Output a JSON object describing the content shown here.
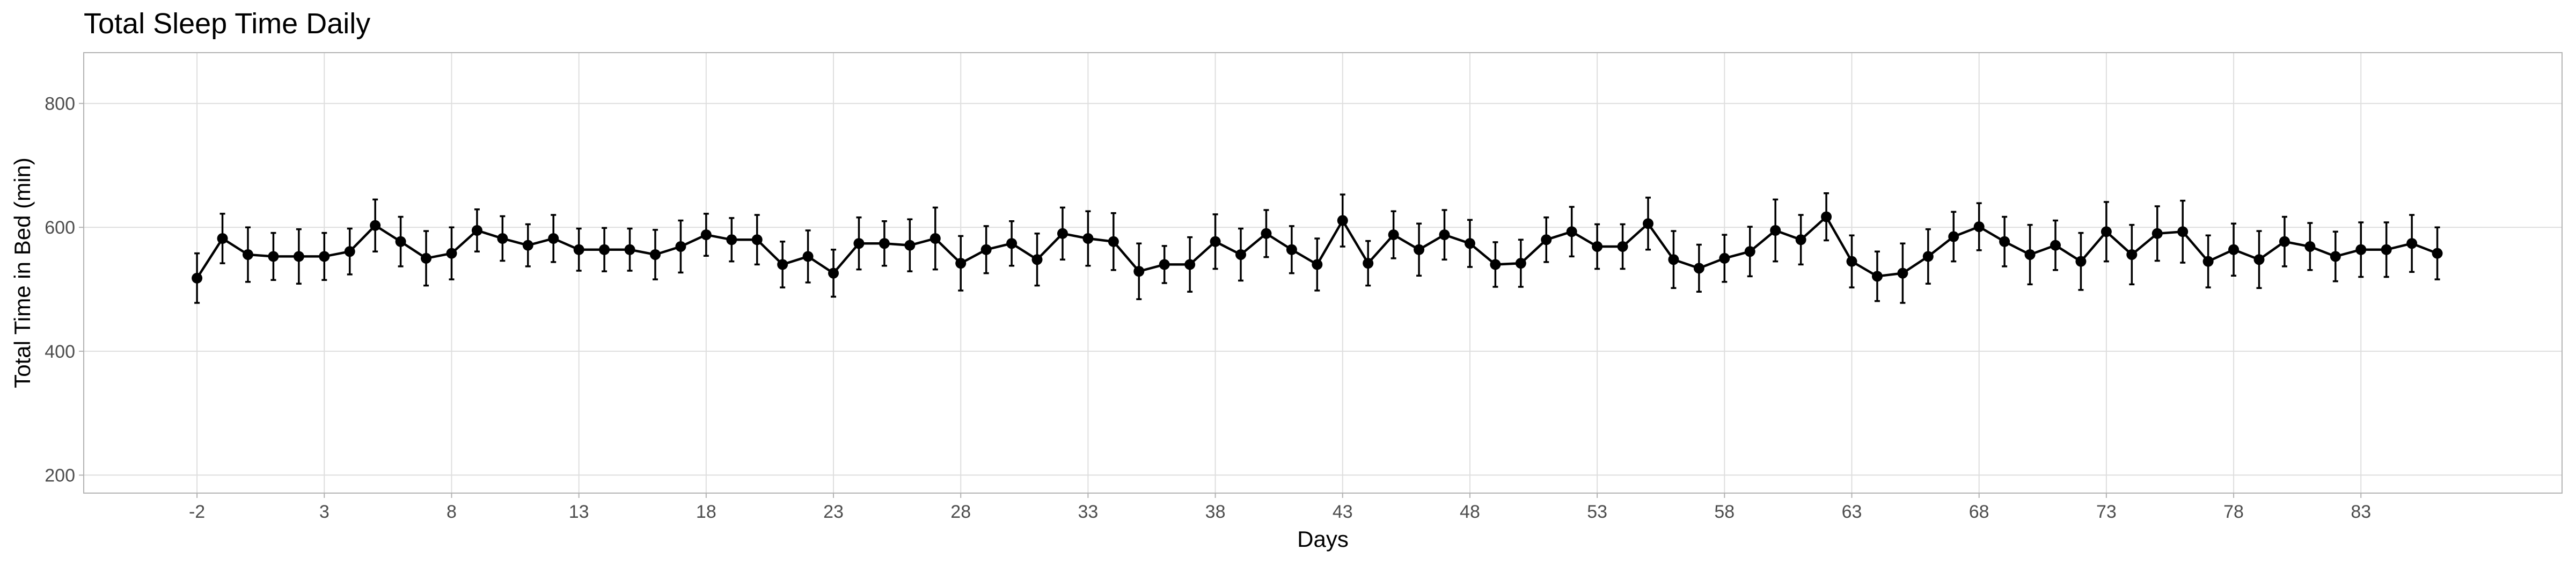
{
  "chart_data": {
    "type": "line",
    "title": "Total Sleep Time Daily",
    "x_label": "Days",
    "y_label": "Total Time in Bed (min)",
    "color": "#000000",
    "grid": true,
    "x": [
      -2,
      -1,
      0,
      1,
      2,
      3,
      4,
      5,
      6,
      7,
      8,
      9,
      10,
      11,
      12,
      13,
      14,
      15,
      16,
      17,
      18,
      19,
      20,
      21,
      22,
      23,
      24,
      25,
      26,
      27,
      28,
      29,
      30,
      31,
      32,
      33,
      34,
      35,
      36,
      37,
      38,
      39,
      40,
      41,
      42,
      43,
      44,
      45,
      46,
      47,
      48,
      49,
      50,
      51,
      52,
      53,
      54,
      55,
      56,
      57,
      58,
      59,
      60,
      61,
      62,
      63,
      64,
      65,
      66,
      67,
      68,
      69,
      70,
      71,
      72,
      73,
      74,
      75,
      76,
      77,
      78,
      79,
      80,
      81,
      82,
      83,
      84,
      85,
      86
    ],
    "values": [
      518,
      582,
      556,
      553,
      553,
      553,
      561,
      603,
      577,
      550,
      558,
      595,
      582,
      571,
      582,
      564,
      564,
      564,
      556,
      569,
      588,
      580,
      580,
      540,
      553,
      526,
      574,
      574,
      571,
      582,
      542,
      564,
      574,
      548,
      590,
      582,
      577,
      529,
      540,
      540,
      577,
      556,
      590,
      564,
      540,
      611,
      542,
      588,
      564,
      588,
      574,
      540,
      542,
      580,
      593,
      569,
      569,
      606,
      548,
      534,
      550,
      561,
      595,
      580,
      617,
      545,
      521,
      526,
      553,
      585,
      601,
      577,
      556,
      571,
      545,
      593,
      556,
      590,
      593,
      545,
      564,
      548,
      577,
      569,
      553,
      564,
      564,
      574,
      558
    ],
    "errors": [
      40,
      40,
      44,
      38,
      44,
      38,
      37,
      42,
      40,
      44,
      42,
      34,
      36,
      34,
      38,
      34,
      35,
      34,
      40,
      42,
      34,
      35,
      40,
      37,
      42,
      38,
      42,
      36,
      42,
      50,
      44,
      38,
      36,
      42,
      42,
      44,
      46,
      45,
      30,
      44,
      44,
      42,
      38,
      38,
      42,
      42,
      36,
      38,
      42,
      40,
      38,
      36,
      38,
      36,
      40,
      36,
      36,
      42,
      46,
      38,
      38,
      40,
      50,
      40,
      38,
      42,
      40,
      48,
      44,
      40,
      38,
      40,
      48,
      40,
      46,
      48,
      48,
      44,
      50,
      42,
      42,
      46,
      40,
      38,
      40,
      44,
      44,
      46,
      42
    ],
    "xlim": [
      -6.45,
      90.9
    ],
    "ylim": [
      171,
      882
    ],
    "xticks": [
      -2,
      3,
      8,
      13,
      18,
      23,
      28,
      33,
      38,
      43,
      48,
      53,
      58,
      63,
      68,
      73,
      78,
      83
    ],
    "yticks": [
      200,
      400,
      600,
      800
    ]
  }
}
